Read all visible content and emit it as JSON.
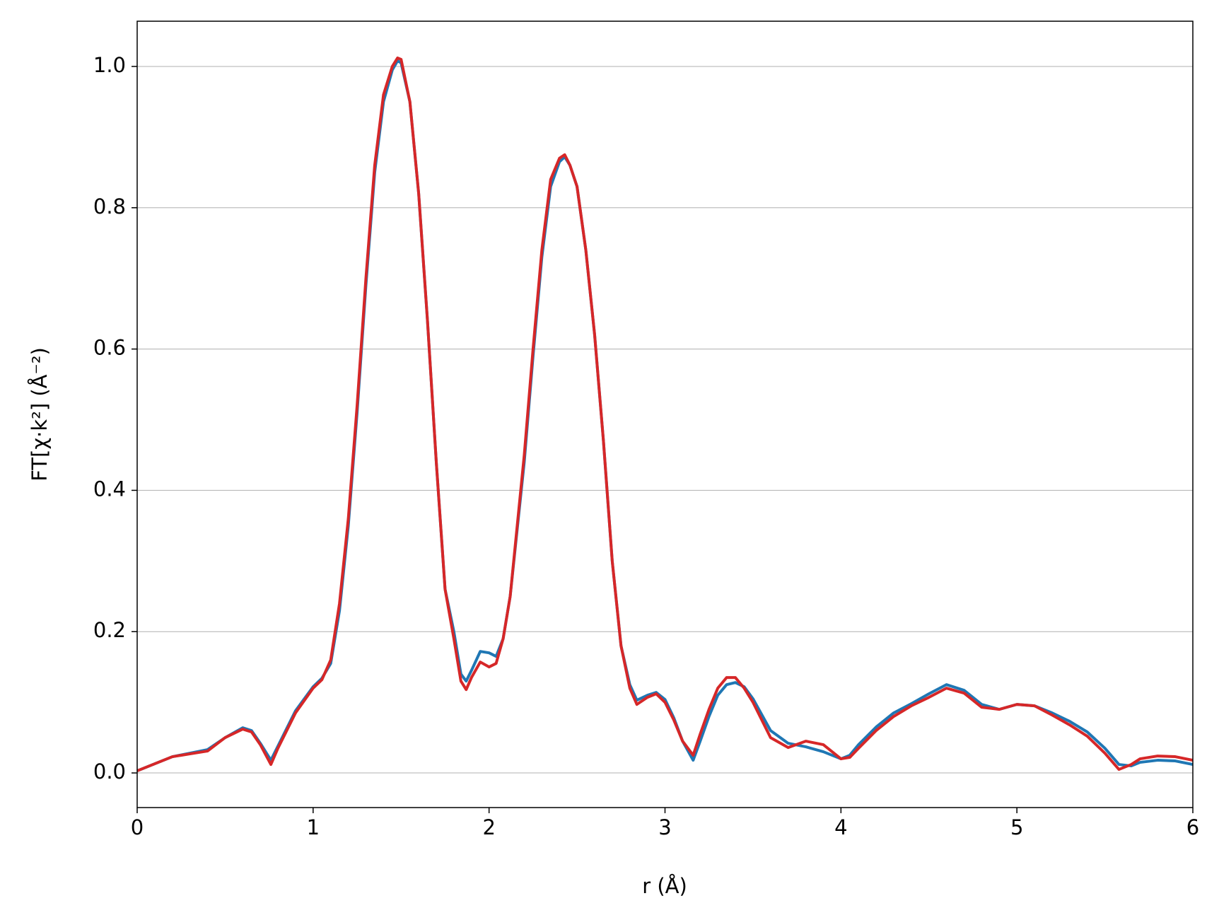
{
  "chart_data": {
    "type": "line",
    "xlabel": "r (Å)",
    "ylabel": "FT[χ·k²] (Å⁻²)",
    "x": [
      0,
      0.1,
      0.2,
      0.3,
      0.4,
      0.5,
      0.6,
      0.65,
      0.7,
      0.76,
      0.8,
      0.9,
      1.0,
      1.05,
      1.1,
      1.15,
      1.2,
      1.25,
      1.3,
      1.35,
      1.4,
      1.45,
      1.48,
      1.5,
      1.55,
      1.6,
      1.65,
      1.7,
      1.75,
      1.8,
      1.84,
      1.87,
      1.9,
      1.95,
      2.0,
      2.04,
      2.08,
      2.12,
      2.2,
      2.25,
      2.3,
      2.35,
      2.4,
      2.43,
      2.46,
      2.5,
      2.55,
      2.6,
      2.65,
      2.7,
      2.75,
      2.8,
      2.84,
      2.9,
      2.95,
      3.0,
      3.05,
      3.1,
      3.16,
      3.2,
      3.25,
      3.3,
      3.35,
      3.4,
      3.45,
      3.5,
      3.6,
      3.7,
      3.8,
      3.9,
      4.0,
      4.05,
      4.1,
      4.2,
      4.3,
      4.4,
      4.5,
      4.6,
      4.7,
      4.8,
      4.9,
      5.0,
      5.1,
      5.2,
      5.3,
      5.4,
      5.5,
      5.58,
      5.65,
      5.7,
      5.8,
      5.9,
      6.0
    ],
    "series": [
      {
        "color": "#1f77b4",
        "values": [
          0.003,
          0.013,
          0.023,
          0.028,
          0.033,
          0.05,
          0.064,
          0.06,
          0.042,
          0.018,
          0.038,
          0.088,
          0.122,
          0.134,
          0.155,
          0.23,
          0.35,
          0.51,
          0.69,
          0.85,
          0.95,
          0.995,
          1.008,
          1.005,
          0.95,
          0.82,
          0.64,
          0.44,
          0.26,
          0.2,
          0.14,
          0.13,
          0.145,
          0.172,
          0.17,
          0.165,
          0.19,
          0.25,
          0.44,
          0.59,
          0.73,
          0.83,
          0.865,
          0.872,
          0.86,
          0.83,
          0.74,
          0.62,
          0.47,
          0.3,
          0.18,
          0.125,
          0.103,
          0.11,
          0.114,
          0.104,
          0.078,
          0.045,
          0.018,
          0.045,
          0.08,
          0.11,
          0.125,
          0.128,
          0.122,
          0.105,
          0.06,
          0.042,
          0.037,
          0.03,
          0.02,
          0.025,
          0.04,
          0.065,
          0.085,
          0.098,
          0.112,
          0.125,
          0.117,
          0.097,
          0.09,
          0.097,
          0.095,
          0.085,
          0.073,
          0.058,
          0.035,
          0.012,
          0.01,
          0.015,
          0.018,
          0.017,
          0.012
        ]
      },
      {
        "color": "#d62728",
        "values": [
          0.003,
          0.013,
          0.023,
          0.027,
          0.031,
          0.05,
          0.062,
          0.058,
          0.04,
          0.012,
          0.035,
          0.085,
          0.12,
          0.132,
          0.16,
          0.24,
          0.36,
          0.52,
          0.7,
          0.86,
          0.96,
          1.0,
          1.012,
          1.01,
          0.95,
          0.82,
          0.64,
          0.44,
          0.26,
          0.19,
          0.13,
          0.118,
          0.135,
          0.157,
          0.15,
          0.155,
          0.19,
          0.25,
          0.45,
          0.6,
          0.74,
          0.84,
          0.87,
          0.875,
          0.86,
          0.83,
          0.74,
          0.62,
          0.47,
          0.3,
          0.18,
          0.12,
          0.097,
          0.107,
          0.112,
          0.1,
          0.075,
          0.045,
          0.025,
          0.055,
          0.09,
          0.12,
          0.135,
          0.135,
          0.12,
          0.1,
          0.05,
          0.036,
          0.045,
          0.04,
          0.02,
          0.022,
          0.035,
          0.06,
          0.08,
          0.095,
          0.107,
          0.12,
          0.113,
          0.093,
          0.09,
          0.097,
          0.095,
          0.082,
          0.068,
          0.052,
          0.028,
          0.005,
          0.012,
          0.02,
          0.024,
          0.023,
          0.018
        ]
      }
    ],
    "xlim": [
      0,
      6
    ],
    "xticks": [
      0,
      1,
      2,
      3,
      4,
      5,
      6
    ],
    "ylim": [
      -0.049,
      1.064
    ],
    "yticks": [
      {
        "value": 0,
        "label": "0.0"
      },
      0.2,
      0.4,
      0.6,
      0.8,
      {
        "value": 1,
        "label": "1.0"
      }
    ],
    "grid": "y"
  }
}
